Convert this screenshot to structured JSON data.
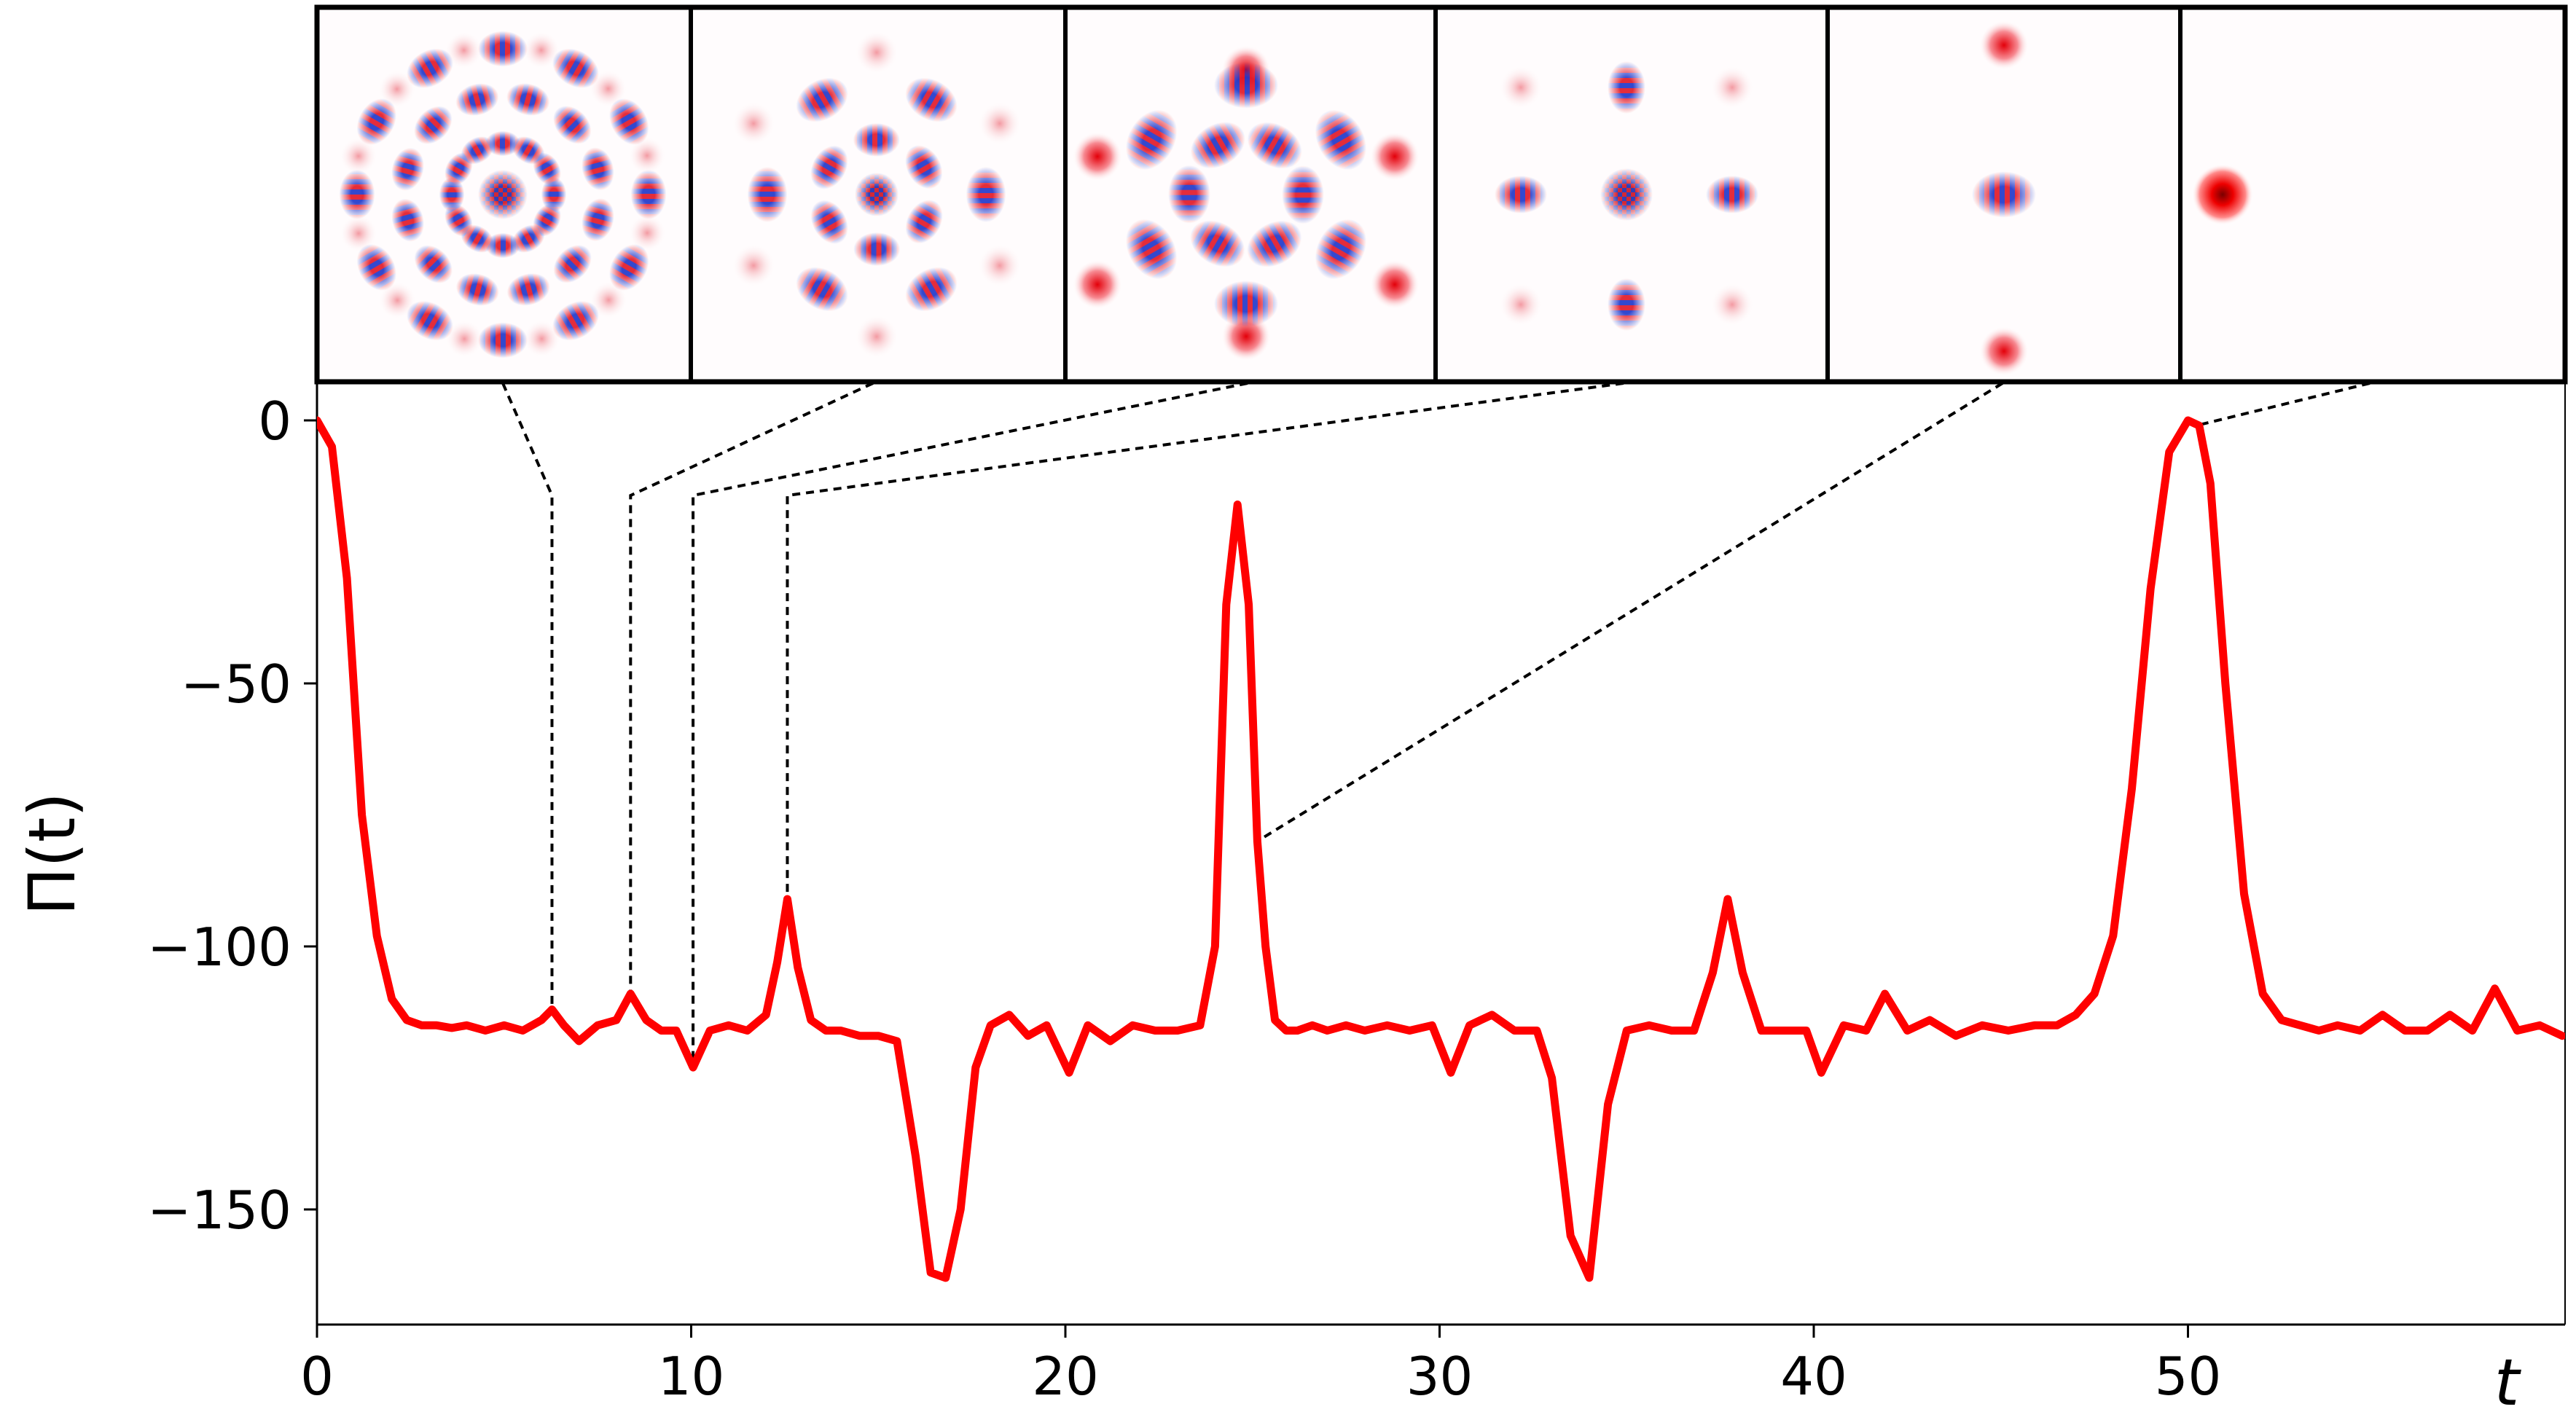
{
  "chart_data": {
    "type": "line",
    "title": "",
    "xlabel": "t",
    "ylabel": "Π(t)",
    "xlim": [
      0,
      60
    ],
    "ylim": [
      -172,
      8
    ],
    "x_ticks": [
      0,
      10,
      20,
      30,
      40,
      50
    ],
    "x_tick_labels": [
      "0",
      "10",
      "20",
      "30",
      "40",
      "50"
    ],
    "y_ticks": [
      0,
      -50,
      -100,
      -150
    ],
    "y_tick_labels": [
      "0",
      "−50",
      "−100",
      "−150"
    ],
    "grid": false,
    "legend": "none",
    "series_color": "#ff0000",
    "series": [
      {
        "x": [
          0,
          0.4,
          0.8,
          1.2,
          1.6,
          2.0,
          2.4,
          2.8,
          3.2,
          3.6,
          4.0,
          4.5,
          5.0,
          5.5,
          6.0,
          6.28,
          6.6,
          7.0,
          7.5,
          8.0,
          8.38,
          8.8,
          9.2,
          9.6,
          10.05,
          10.5,
          11.0,
          11.5,
          12.0,
          12.3,
          12.57,
          12.85,
          13.2,
          13.6,
          14.0,
          14.5,
          15.0,
          15.5,
          16.0,
          16.4,
          16.8,
          17.2,
          17.6,
          18.0,
          18.5,
          19.0,
          19.5,
          20.1,
          20.6,
          21.2,
          21.8,
          22.4,
          23.0,
          23.6,
          24.0,
          24.3,
          24.6,
          24.9,
          25.13,
          25.35,
          25.6,
          25.9,
          26.2,
          26.6,
          27.0,
          27.5,
          28.0,
          28.6,
          29.2,
          29.8,
          30.3,
          30.8,
          31.4,
          32.0,
          32.6,
          33.0,
          33.5,
          34.0,
          34.5,
          35.0,
          35.6,
          36.2,
          36.8,
          37.3,
          37.7,
          38.1,
          38.6,
          39.2,
          39.8,
          40.2,
          40.8,
          41.4,
          41.9,
          42.5,
          43.1,
          43.8,
          44.5,
          45.2,
          45.9,
          46.5,
          47.0,
          47.5,
          48.0,
          48.5,
          49.0,
          49.5,
          50.0,
          50.3,
          50.6,
          51.0,
          51.5,
          52.0,
          52.5,
          53.0,
          53.5,
          54.0,
          54.6,
          55.2,
          55.8,
          56.4,
          57.0,
          57.6,
          58.2,
          58.8,
          59.4,
          60.0
        ],
        "y": [
          0,
          -5,
          -30,
          -75,
          -98,
          -110,
          -114,
          -115,
          -115,
          -115.5,
          -115,
          -116,
          -115,
          -116,
          -114,
          -112,
          -115,
          -118,
          -115,
          -114,
          -109,
          -114,
          -116,
          -116,
          -123,
          -116,
          -115,
          -116,
          -113,
          -103,
          -91,
          -104,
          -114,
          -116,
          -116,
          -117,
          -117,
          -118,
          -140,
          -162,
          -163,
          -150,
          -123,
          -115,
          -113,
          -117,
          -115,
          -124,
          -115,
          -118,
          -115,
          -116,
          -116,
          -115,
          -100,
          -35,
          -16,
          -35,
          -80,
          -100,
          -114,
          -116,
          -116,
          -115,
          -116,
          -115,
          -116,
          -115,
          -116,
          -115,
          -124,
          -115,
          -113,
          -116,
          -116,
          -125,
          -155,
          -163,
          -130,
          -116,
          -115,
          -116,
          -116,
          -105,
          -91,
          -105,
          -116,
          -116,
          -116,
          -124,
          -115,
          -116,
          -109,
          -116,
          -114,
          -117,
          -115,
          -116,
          -115,
          -115,
          -113,
          -109,
          -98,
          -70,
          -32,
          -6,
          0,
          -1,
          -12,
          -50,
          -90,
          -109,
          -114,
          -115,
          -116,
          -115,
          -116,
          -113,
          -116,
          -116,
          -113,
          -116,
          -108,
          -116,
          -115,
          -117
        ]
      }
    ],
    "snapshot_times": [
      6.28,
      8.38,
      10.05,
      12.57,
      25.13,
      50.27
    ]
  }
}
